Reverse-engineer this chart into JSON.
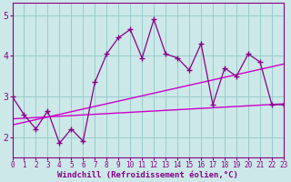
{
  "xlabel": "Windchill (Refroidissement éolien,°C)",
  "xlim": [
    0,
    23
  ],
  "ylim": [
    1.5,
    5.3
  ],
  "yticks": [
    2,
    3,
    4,
    5
  ],
  "xticks": [
    0,
    1,
    2,
    3,
    4,
    5,
    6,
    7,
    8,
    9,
    10,
    11,
    12,
    13,
    14,
    15,
    16,
    17,
    18,
    19,
    20,
    21,
    22,
    23
  ],
  "bg_color": "#cce8e8",
  "grid_color": "#99cccc",
  "line_color": "#880088",
  "line_color2": "#cc00cc",
  "zigzag_x": [
    0,
    1,
    2,
    3,
    4,
    5,
    6,
    7,
    8,
    9,
    10,
    11,
    12,
    13,
    14,
    15,
    16,
    17,
    18,
    19,
    20,
    21,
    22,
    23
  ],
  "zigzag_y": [
    3.0,
    2.55,
    2.2,
    2.65,
    1.85,
    2.2,
    1.9,
    3.35,
    4.05,
    4.45,
    4.65,
    3.95,
    4.9,
    4.05,
    3.95,
    3.65,
    4.3,
    2.8,
    3.7,
    3.5,
    4.05,
    3.85,
    2.8,
    2.8
  ],
  "trend1_x": [
    0,
    23
  ],
  "trend1_y": [
    2.45,
    2.82
  ],
  "trend2_x": [
    0,
    23
  ],
  "trend2_y": [
    2.3,
    3.8
  ]
}
